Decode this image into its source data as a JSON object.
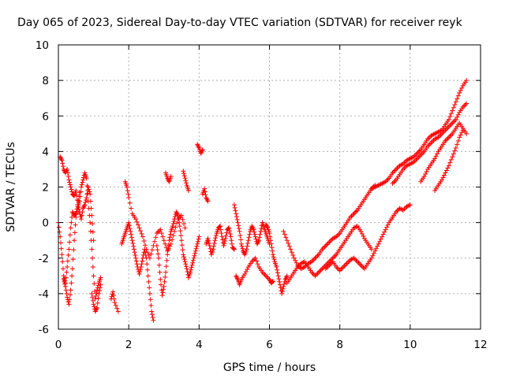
{
  "chart_data": {
    "type": "scatter",
    "title": "Day 065 of 2023, Sidereal Day-to-day VTEC variation (SDTVAR) for receiver reyk",
    "xlabel": "GPS time / hours",
    "ylabel": "SDTVAR / TECUs",
    "xlim": [
      0,
      12
    ],
    "ylim": [
      -6,
      10
    ],
    "xticks": [
      0,
      2,
      4,
      6,
      8,
      10,
      12
    ],
    "yticks": [
      -6,
      -4,
      -2,
      0,
      2,
      4,
      6,
      8,
      10
    ],
    "grid": true,
    "marker": "+",
    "color": "#ff0000",
    "series": [
      {
        "name": "track-1",
        "x": [
          0.0,
          0.05,
          0.1,
          0.15,
          0.2,
          0.25,
          0.3,
          0.35,
          0.4,
          0.45,
          0.5,
          0.55,
          0.6,
          0.65,
          0.7,
          0.75,
          0.8,
          0.85,
          0.9,
          0.95,
          1.0,
          1.05,
          1.1,
          1.15,
          1.2
        ],
        "y": [
          0.0,
          -0.8,
          -1.8,
          -3.0,
          -3.4,
          -2.5,
          -1.5,
          -0.3,
          0.6,
          0.4,
          0.5,
          0.9,
          1.2,
          2.0,
          2.4,
          2.8,
          2.5,
          1.2,
          0.0,
          -1.5,
          -3.0,
          -4.3,
          -3.8,
          -3.4,
          -3.1
        ]
      },
      {
        "name": "track-2",
        "x": [
          0.05,
          0.1,
          0.15,
          0.2,
          0.25,
          0.3,
          0.35,
          0.4,
          0.45,
          0.5,
          0.55,
          0.6,
          0.65,
          0.7,
          0.75,
          0.8,
          0.85,
          0.9,
          0.95,
          1.0
        ],
        "y": [
          3.7,
          3.5,
          3.0,
          2.8,
          3.0,
          2.4,
          2.0,
          1.6,
          1.5,
          1.8,
          1.0,
          0.6,
          0.2,
          0.8,
          1.0,
          1.4,
          2.0,
          1.6,
          0.4,
          -1.0
        ]
      },
      {
        "name": "track-3",
        "x": [
          0.15,
          0.2,
          0.25,
          0.3,
          0.35,
          0.4,
          0.45,
          0.5,
          0.55,
          0.6
        ],
        "y": [
          -3.2,
          -3.6,
          -4.2,
          -4.6,
          -3.8,
          -2.6,
          -1.0,
          0.3,
          1.0,
          1.7
        ]
      },
      {
        "name": "track-4",
        "x": [
          0.95,
          1.0,
          1.05,
          1.1,
          1.15,
          1.2
        ],
        "y": [
          -4.0,
          -4.6,
          -5.0,
          -4.8,
          -4.0,
          -3.5
        ]
      },
      {
        "name": "track-5",
        "x": [
          1.5,
          1.55,
          1.6,
          1.7
        ],
        "y": [
          -4.3,
          -3.9,
          -4.5,
          -5.0
        ]
      },
      {
        "name": "track-6",
        "x": [
          1.8,
          1.85,
          1.9,
          1.95,
          2.0,
          2.05,
          2.1,
          2.15,
          2.2,
          2.25,
          2.3,
          2.35,
          2.4,
          2.45,
          2.5,
          2.55,
          2.6,
          2.65,
          2.7
        ],
        "y": [
          -1.2,
          -0.9,
          -0.6,
          -0.3,
          0.0,
          -0.5,
          -1.0,
          -1.5,
          -2.0,
          -2.5,
          -2.9,
          -2.5,
          -2.0,
          -1.5,
          -2.0,
          -3.0,
          -4.0,
          -5.0,
          -5.5
        ]
      },
      {
        "name": "track-7",
        "x": [
          1.9,
          1.95,
          2.0,
          2.1,
          2.2,
          2.3,
          2.4,
          2.5,
          2.6,
          2.7,
          2.8,
          2.9,
          3.0,
          3.1,
          3.2,
          3.3,
          3.4,
          3.5,
          3.6
        ],
        "y": [
          2.3,
          2.0,
          1.4,
          0.5,
          0.2,
          -0.3,
          -0.8,
          -1.5,
          -2.0,
          -1.3,
          -0.6,
          -0.4,
          -1.0,
          -1.6,
          -1.2,
          -0.5,
          0.2,
          0.4,
          -0.3
        ]
      },
      {
        "name": "track-8",
        "x": [
          2.8,
          2.85,
          2.9,
          2.95,
          3.0,
          3.05,
          3.1,
          3.15,
          3.2,
          3.25,
          3.3,
          3.35,
          3.4,
          3.45,
          3.5,
          3.55,
          3.6,
          3.65,
          3.7,
          3.75,
          3.8,
          3.85,
          3.9,
          3.95,
          4.0
        ],
        "y": [
          -1.3,
          -2.0,
          -3.2,
          -4.1,
          -3.6,
          -2.8,
          -1.8,
          -1.0,
          -0.5,
          -0.2,
          0.2,
          0.6,
          0.4,
          -0.2,
          -1.0,
          -1.8,
          -2.2,
          -2.6,
          -3.1,
          -2.8,
          -2.4,
          -2.0,
          -1.6,
          -1.2,
          -0.8
        ]
      },
      {
        "name": "track-9",
        "x": [
          3.05,
          3.1,
          3.15,
          3.2
        ],
        "y": [
          2.8,
          2.5,
          2.3,
          2.6
        ]
      },
      {
        "name": "track-10",
        "x": [
          3.55,
          3.6,
          3.65,
          3.7
        ],
        "y": [
          2.9,
          2.5,
          2.1,
          1.8
        ]
      },
      {
        "name": "track-11",
        "x": [
          3.95,
          4.0,
          4.05,
          4.1
        ],
        "y": [
          4.4,
          4.2,
          3.9,
          4.1
        ]
      },
      {
        "name": "track-12",
        "x": [
          4.1,
          4.15,
          4.2,
          4.25
        ],
        "y": [
          1.6,
          1.9,
          1.4,
          1.2
        ]
      },
      {
        "name": "track-13",
        "x": [
          4.2,
          4.25,
          4.3,
          4.35,
          4.4,
          4.45,
          4.5,
          4.55,
          4.6,
          4.65,
          4.7,
          4.75,
          4.8,
          4.85,
          4.9,
          4.95,
          5.0
        ],
        "y": [
          -1.2,
          -0.9,
          -1.3,
          -1.8,
          -1.5,
          -1.0,
          -0.6,
          -0.3,
          -0.2,
          -0.8,
          -1.3,
          -0.9,
          -0.4,
          -0.3,
          -0.8,
          -1.4,
          -1.5
        ]
      },
      {
        "name": "track-14",
        "x": [
          5.0,
          5.05,
          5.1,
          5.15,
          5.2,
          5.25,
          5.3,
          5.35,
          5.4,
          5.45,
          5.5,
          5.55,
          5.6,
          5.65,
          5.7,
          5.75,
          5.8,
          5.85,
          5.9,
          5.95,
          6.0
        ],
        "y": [
          1.0,
          0.5,
          0.0,
          -0.5,
          -1.2,
          -1.6,
          -1.8,
          -1.5,
          -1.0,
          -0.5,
          -0.2,
          -0.4,
          -0.8,
          -1.2,
          -1.0,
          -0.5,
          0.0,
          -0.3,
          -0.6,
          -0.9,
          -1.2
        ]
      },
      {
        "name": "track-15",
        "x": [
          5.05,
          5.1,
          5.15,
          5.2,
          5.3,
          5.4,
          5.5,
          5.6,
          5.7,
          5.8,
          5.9,
          6.0,
          6.05,
          6.1
        ],
        "y": [
          -3.0,
          -3.2,
          -3.5,
          -3.2,
          -2.9,
          -2.5,
          -2.2,
          -2.0,
          -2.5,
          -2.8,
          -3.0,
          -3.2,
          -3.4,
          -3.3
        ]
      },
      {
        "name": "track-16",
        "x": [
          5.9,
          5.95,
          6.0,
          6.05,
          6.1,
          6.15,
          6.2,
          6.25,
          6.3,
          6.35,
          6.4,
          6.45,
          6.5
        ],
        "y": [
          -0.1,
          -0.3,
          -0.6,
          -1.2,
          -1.8,
          -2.2,
          -2.5,
          -3.0,
          -3.5,
          -4.0,
          -3.6,
          -3.2,
          -3.0
        ]
      },
      {
        "name": "track-17",
        "x": [
          6.4,
          6.5,
          6.6,
          6.7,
          6.8,
          6.9,
          7.0,
          7.1,
          7.2,
          7.3,
          7.4,
          7.5,
          7.6,
          7.7,
          7.8,
          7.9,
          8.0,
          8.1,
          8.2,
          8.3,
          8.4,
          8.5,
          8.6,
          8.7,
          8.8,
          8.9,
          9.0
        ],
        "y": [
          -0.5,
          -1.0,
          -1.5,
          -2.0,
          -2.4,
          -2.6,
          -2.5,
          -2.3,
          -2.2,
          -2.0,
          -1.8,
          -1.5,
          -1.3,
          -1.1,
          -0.9,
          -0.8,
          -0.6,
          -0.3,
          0.0,
          0.3,
          0.5,
          0.7,
          1.0,
          1.3,
          1.6,
          1.9,
          2.1
        ]
      },
      {
        "name": "track-18",
        "x": [
          6.5,
          6.6,
          6.7,
          6.8,
          6.9,
          7.0,
          7.1,
          7.2,
          7.3,
          7.4,
          7.5,
          7.6,
          7.7,
          7.8,
          7.9,
          8.0,
          8.1,
          8.2,
          8.3,
          8.4,
          8.5,
          8.6,
          8.7,
          8.8,
          8.9
        ],
        "y": [
          -3.4,
          -3.1,
          -2.8,
          -2.5,
          -2.3,
          -2.2,
          -2.5,
          -2.8,
          -3.0,
          -2.8,
          -2.6,
          -2.4,
          -2.2,
          -2.0,
          -1.8,
          -1.5,
          -1.2,
          -0.9,
          -0.6,
          -0.3,
          -0.2,
          -0.5,
          -0.9,
          -1.2,
          -1.5
        ]
      },
      {
        "name": "track-19",
        "x": [
          7.6,
          7.7,
          7.8,
          7.9,
          8.0,
          8.1,
          8.2,
          8.3,
          8.4,
          8.5,
          8.6,
          8.7,
          8.8,
          8.9,
          9.0,
          9.1,
          9.2,
          9.3,
          9.4,
          9.5,
          9.6,
          9.7,
          9.8,
          9.9,
          10.0
        ],
        "y": [
          -2.6,
          -2.4,
          -2.2,
          -2.5,
          -2.7,
          -2.5,
          -2.3,
          -2.1,
          -2.0,
          -2.2,
          -2.4,
          -2.6,
          -2.3,
          -2.0,
          -1.6,
          -1.2,
          -0.8,
          -0.4,
          0.0,
          0.3,
          0.6,
          0.8,
          0.7,
          0.9,
          1.0
        ]
      },
      {
        "name": "track-20",
        "x": [
          8.9,
          9.0,
          9.1,
          9.2,
          9.3,
          9.4,
          9.5,
          9.6,
          9.7,
          9.8,
          9.9,
          10.0,
          10.1,
          10.2,
          10.3,
          10.4,
          10.5,
          10.6,
          10.7,
          10.8,
          10.9,
          11.0,
          11.1,
          11.2,
          11.3,
          11.4,
          11.5,
          11.6
        ],
        "y": [
          1.9,
          2.0,
          2.1,
          2.2,
          2.3,
          2.5,
          2.8,
          3.0,
          3.2,
          3.3,
          3.5,
          3.6,
          3.7,
          3.9,
          4.1,
          4.4,
          4.7,
          4.9,
          5.0,
          5.1,
          5.2,
          5.5,
          5.8,
          6.3,
          6.8,
          7.3,
          7.7,
          8.0
        ]
      },
      {
        "name": "track-21",
        "x": [
          9.5,
          9.6,
          9.7,
          9.8,
          9.9,
          10.0,
          10.1,
          10.2,
          10.3,
          10.4,
          10.5,
          10.6,
          10.7,
          10.8,
          10.9,
          11.0,
          11.1,
          11.2,
          11.3,
          11.4,
          11.5,
          11.6
        ],
        "y": [
          2.2,
          2.4,
          2.7,
          3.0,
          3.2,
          3.3,
          3.4,
          3.6,
          3.8,
          4.0,
          4.3,
          4.5,
          4.7,
          4.8,
          5.0,
          5.2,
          5.4,
          5.6,
          5.8,
          6.2,
          6.5,
          6.7
        ]
      },
      {
        "name": "track-22",
        "x": [
          10.3,
          10.4,
          10.5,
          10.6,
          10.7,
          10.8,
          10.9,
          11.0,
          11.1,
          11.2,
          11.3,
          11.4,
          11.5,
          11.6
        ],
        "y": [
          2.3,
          2.6,
          3.0,
          3.3,
          3.6,
          4.0,
          4.3,
          4.6,
          4.8,
          5.0,
          5.3,
          5.6,
          5.3,
          5.0
        ]
      },
      {
        "name": "track-23",
        "x": [
          10.7,
          10.8,
          10.9,
          11.0,
          11.1,
          11.2,
          11.3,
          11.4,
          11.5
        ],
        "y": [
          1.8,
          2.1,
          2.4,
          2.8,
          3.2,
          3.7,
          4.2,
          4.8,
          5.2
        ]
      }
    ]
  }
}
